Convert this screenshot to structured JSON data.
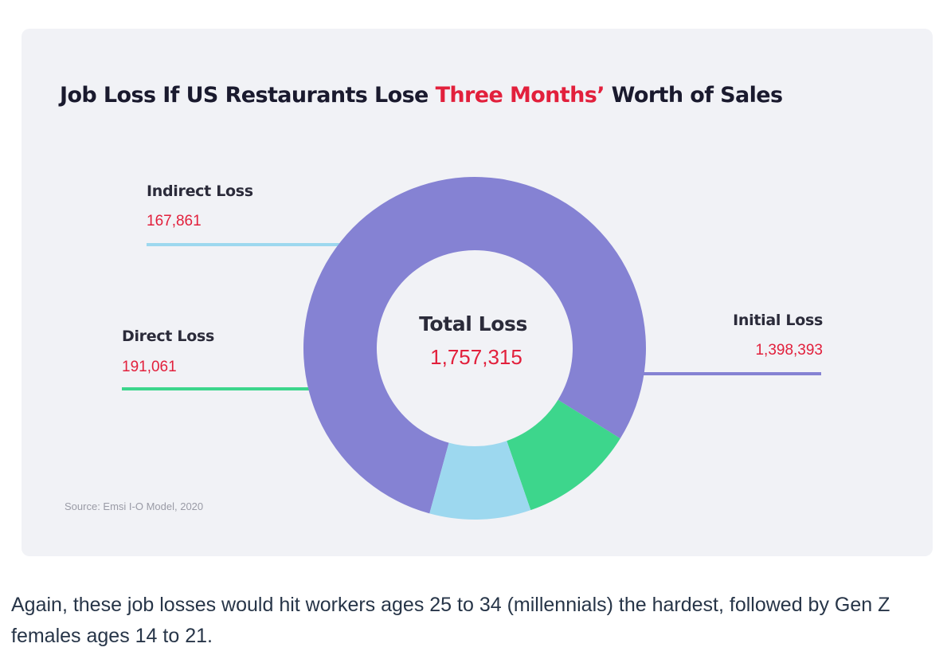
{
  "chart_data": {
    "type": "pie",
    "subtype": "donut",
    "title": {
      "before": "Job Loss If US Restaurants Lose ",
      "highlight": "Three Months’",
      "after": " Worth of Sales"
    },
    "center": {
      "label": "Total Loss",
      "value_text": "1,757,315",
      "value": 1757315
    },
    "slices": [
      {
        "name": "Initial Loss",
        "value": 1398393,
        "value_text": "1,398,393",
        "color": "#8582d3"
      },
      {
        "name": "Direct Loss",
        "value": 191061,
        "value_text": "191,061",
        "color": "#3dd68c"
      },
      {
        "name": "Indirect Loss",
        "value": 167861,
        "value_text": "167,861",
        "color": "#9dd8ef"
      }
    ],
    "source": "Source: Emsi I-O Model, 2020"
  },
  "colors": {
    "accent": "#e2203c",
    "card_bg": "#f1f2f6",
    "text_dark": "#2b2b3a"
  },
  "caption": "Again, these job losses would hit workers ages 25 to 34 (millennials) the hardest, followed by Gen Z females ages 14 to 21."
}
